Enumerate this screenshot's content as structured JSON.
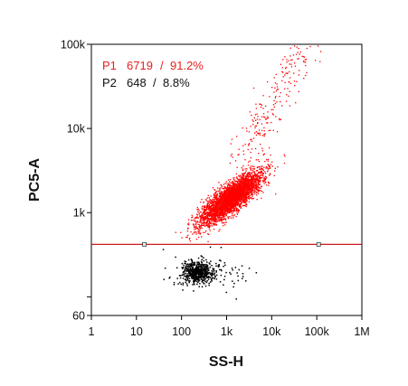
{
  "chart_data": {
    "type": "scatter",
    "xlabel": "SS-H",
    "ylabel": "PC5-A",
    "x_scale": "log",
    "y_scale": "log",
    "xlim": [
      1,
      1000000
    ],
    "ylim": [
      60,
      100000
    ],
    "x_ticks": [
      {
        "value": 1,
        "label": "1"
      },
      {
        "value": 10,
        "label": "10"
      },
      {
        "value": 100,
        "label": "100"
      },
      {
        "value": 1000,
        "label": "1k"
      },
      {
        "value": 10000,
        "label": "10k"
      },
      {
        "value": 100000,
        "label": "100k"
      },
      {
        "value": 1000000,
        "label": "1M"
      }
    ],
    "y_ticks": [
      {
        "value": 60,
        "label": "60"
      },
      {
        "value": 1000,
        "label": "1k"
      },
      {
        "value": 10000,
        "label": "10k"
      },
      {
        "value": 100000,
        "label": "100k"
      }
    ],
    "y_minor_ticks": [
      100
    ],
    "grid": false,
    "legend_position": "top-left",
    "gate": {
      "type": "horizontal",
      "y": 420,
      "color": "#c00000",
      "handles_x": [
        15,
        110000
      ]
    },
    "series": [
      {
        "name": "P1",
        "count": "6719",
        "percent": "91.2%",
        "color": "#ff0000",
        "center": [
          1200,
          1500
        ],
        "region": "above gate"
      },
      {
        "name": "P2",
        "count": "648",
        "percent": "8.8%",
        "color": "#000000",
        "center": [
          220,
          200
        ],
        "region": "below gate"
      }
    ]
  }
}
